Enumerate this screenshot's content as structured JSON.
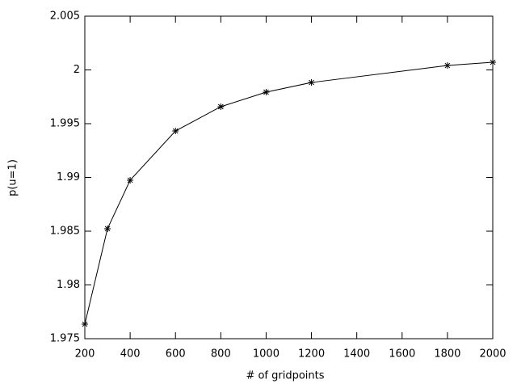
{
  "chart_data": {
    "type": "line",
    "xlabel": "# of gridpoints",
    "ylabel": "p(u=1)",
    "x": [
      200,
      300,
      400,
      600,
      800,
      1000,
      1200,
      1800,
      2000
    ],
    "series": [
      {
        "color": "#000000",
        "values": [
          1.97635,
          1.98523,
          1.98974,
          1.99432,
          1.99658,
          1.99793,
          1.99883,
          2.00041,
          2.00071
        ]
      }
    ],
    "xlim": [
      200,
      2000
    ],
    "xticks": [
      200,
      400,
      600,
      800,
      1000,
      1200,
      1400,
      1600,
      1800,
      2000
    ],
    "ylim": [
      1.975,
      2.005
    ],
    "yticks": [
      1.975,
      1.98,
      1.985,
      1.99,
      1.995,
      2,
      2.005
    ]
  }
}
